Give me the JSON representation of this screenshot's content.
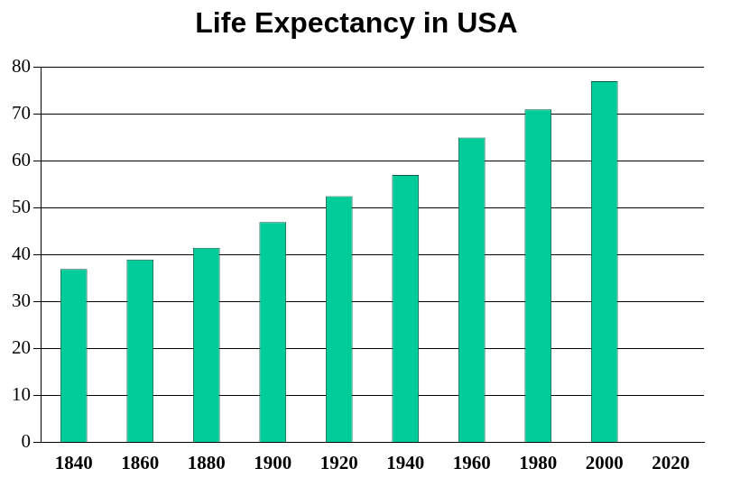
{
  "chart_data": {
    "type": "bar",
    "title": "Life Expectancy in USA",
    "categories": [
      "1840",
      "1860",
      "1880",
      "1900",
      "1920",
      "1940",
      "1960",
      "1980",
      "2000",
      "2020"
    ],
    "values": [
      37,
      39,
      41.5,
      47,
      52.5,
      57,
      65,
      71,
      77,
      null
    ],
    "color": "#00cc99",
    "ylim": [
      0,
      80
    ],
    "yticks": [
      0,
      10,
      20,
      30,
      40,
      50,
      60,
      70,
      80
    ],
    "grid": true
  }
}
